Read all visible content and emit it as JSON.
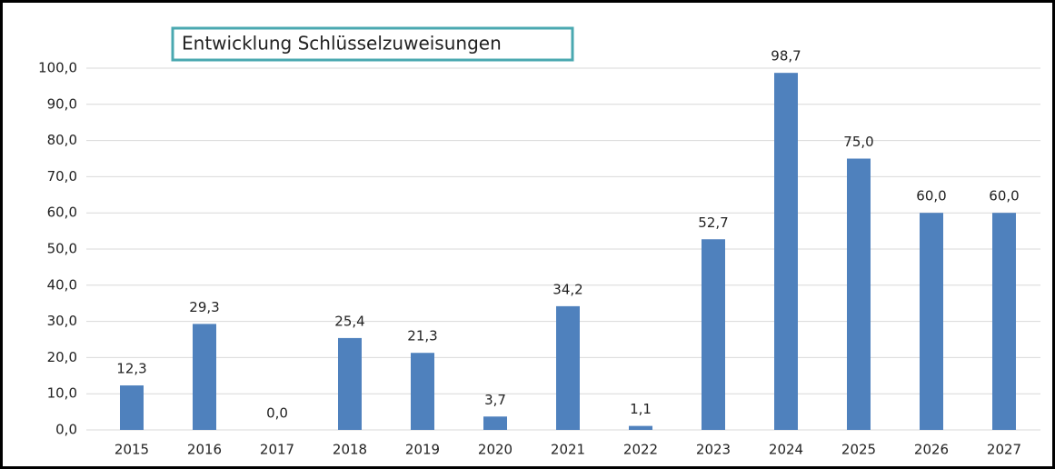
{
  "chart_data": {
    "type": "bar",
    "title": "Entwicklung Schlüsselzuweisungen",
    "categories": [
      "2015",
      "2016",
      "2017",
      "2018",
      "2019",
      "2020",
      "2021",
      "2022",
      "2023",
      "2024",
      "2025",
      "2026",
      "2027"
    ],
    "values": [
      12.3,
      29.3,
      0.0,
      25.4,
      21.3,
      3.7,
      34.2,
      1.1,
      52.7,
      98.7,
      75.0,
      60.0,
      60.0
    ],
    "value_labels": [
      "12,3",
      "29,3",
      "0,0",
      "25,4",
      "21,3",
      "3,7",
      "34,2",
      "1,1",
      "52,7",
      "98,7",
      "75,0",
      "60,0",
      "60,0"
    ],
    "color": "#4f81bd",
    "ylim": [
      0,
      100
    ],
    "yticks": [
      {
        "value": 0,
        "label": "0,0"
      },
      {
        "value": 10,
        "label": "10,0"
      },
      {
        "value": 20,
        "label": "20,0"
      },
      {
        "value": 30,
        "label": "30,0"
      },
      {
        "value": 40,
        "label": "40,0"
      },
      {
        "value": 50,
        "label": "50,0"
      },
      {
        "value": 60,
        "label": "60,0"
      },
      {
        "value": 70,
        "label": "70,0"
      },
      {
        "value": 80,
        "label": "80,0"
      },
      {
        "value": 90,
        "label": "90,0"
      },
      {
        "value": 100,
        "label": "100,0"
      }
    ],
    "grid": true
  }
}
